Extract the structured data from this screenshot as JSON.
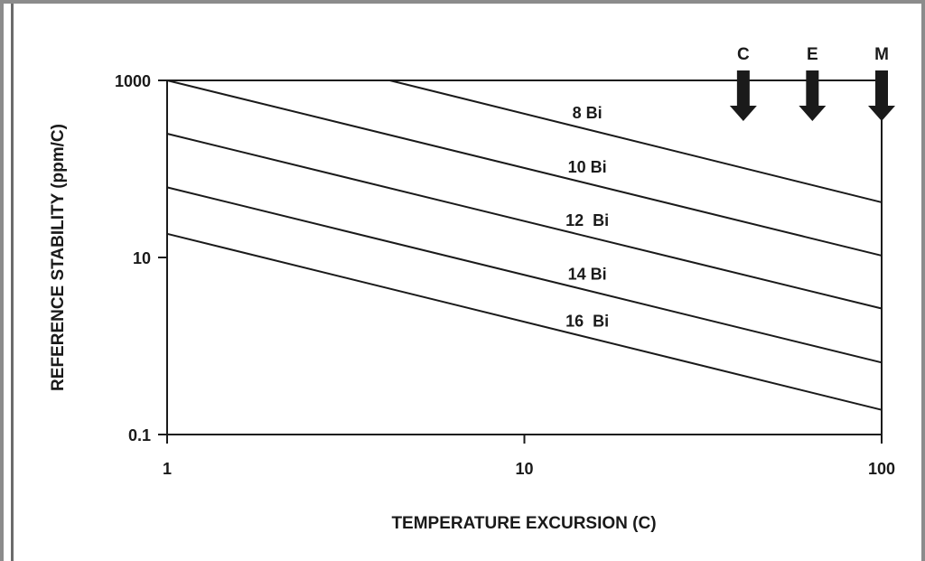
{
  "chart_data": {
    "type": "line",
    "xscale": "log",
    "yscale": "log",
    "xlim": [
      1,
      100
    ],
    "ylim": [
      0.1,
      1000
    ],
    "xticks": [
      "1",
      "10",
      "100"
    ],
    "yticks": [
      "0.1",
      "10",
      "1000"
    ],
    "xlabel": "TEMPERATURE EXCURSION (C)",
    "ylabel": "REFERENCE STABILITY (ppm/C)",
    "series": [
      {
        "name": "8 Bi",
        "x": [
          4.2,
          100
        ],
        "y": [
          1000,
          42
        ]
      },
      {
        "name": "10 Bi",
        "x": [
          1,
          100
        ],
        "y": [
          1000,
          10.5
        ]
      },
      {
        "name": "12  Bi",
        "x": [
          1,
          100
        ],
        "y": [
          250,
          2.65
        ]
      },
      {
        "name": "14 Bi",
        "x": [
          1,
          100
        ],
        "y": [
          62,
          0.65
        ]
      },
      {
        "name": "16  Bi",
        "x": [
          1,
          100
        ],
        "y": [
          18.5,
          0.19
        ]
      }
    ],
    "markers": [
      {
        "label": "C",
        "x": 41
      },
      {
        "label": "E",
        "x": 64
      },
      {
        "label": "M",
        "x": 100
      }
    ]
  }
}
